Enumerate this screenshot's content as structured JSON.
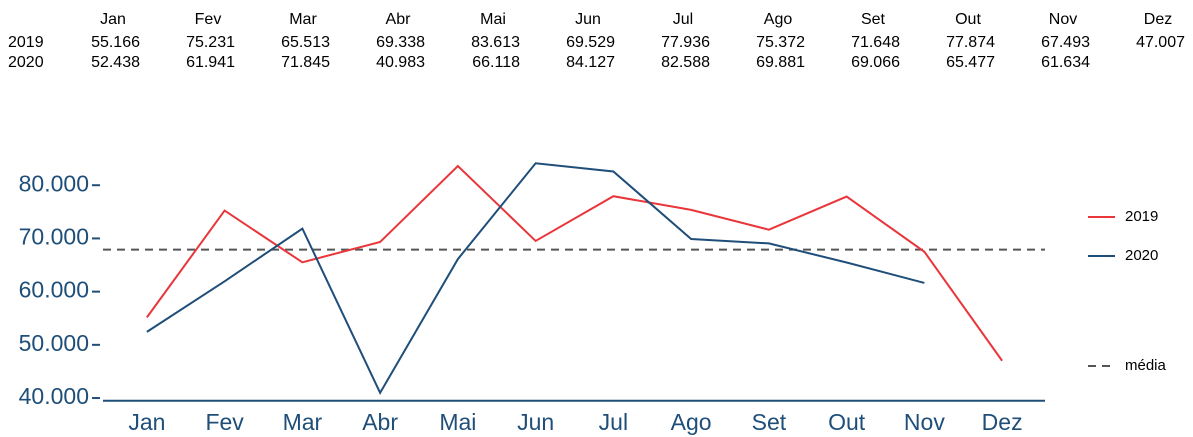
{
  "chart_data": {
    "type": "line",
    "categories": [
      "Jan",
      "Fev",
      "Mar",
      "Abr",
      "Mai",
      "Jun",
      "Jul",
      "Ago",
      "Set",
      "Out",
      "Nov",
      "Dez"
    ],
    "series": [
      {
        "name": "2019",
        "color": "#e8363b",
        "values": [
          55166,
          75231,
          65513,
          69338,
          83613,
          69529,
          77936,
          75372,
          71648,
          77874,
          67493,
          47007
        ],
        "value_labels": [
          "55.166",
          "75.231",
          "65.513",
          "69.338",
          "83.613",
          "69.529",
          "77.936",
          "75.372",
          "71.648",
          "77.874",
          "67.493",
          "47.007"
        ]
      },
      {
        "name": "2020",
        "color": "#1f4e79",
        "values": [
          52438,
          61941,
          71845,
          40983,
          66118,
          84127,
          82588,
          69881,
          69066,
          65477,
          61634,
          null
        ],
        "value_labels": [
          "52.438",
          "61.941",
          "71.845",
          "40.983",
          "66.118",
          "84.127",
          "82.588",
          "69.881",
          "69.066",
          "65.477",
          "61.634",
          null
        ]
      }
    ],
    "mean": {
      "label": "média",
      "value": 67905,
      "color": "#555555"
    },
    "ylim": [
      39500,
      86000
    ],
    "yticks": [
      {
        "value": 40000,
        "label": "40.000"
      },
      {
        "value": 50000,
        "label": "50.000"
      },
      {
        "value": 60000,
        "label": "60.000"
      },
      {
        "value": 70000,
        "label": "70.000"
      },
      {
        "value": 80000,
        "label": "80.000"
      }
    ],
    "axis_color": "#1f4e79",
    "grid": false
  }
}
